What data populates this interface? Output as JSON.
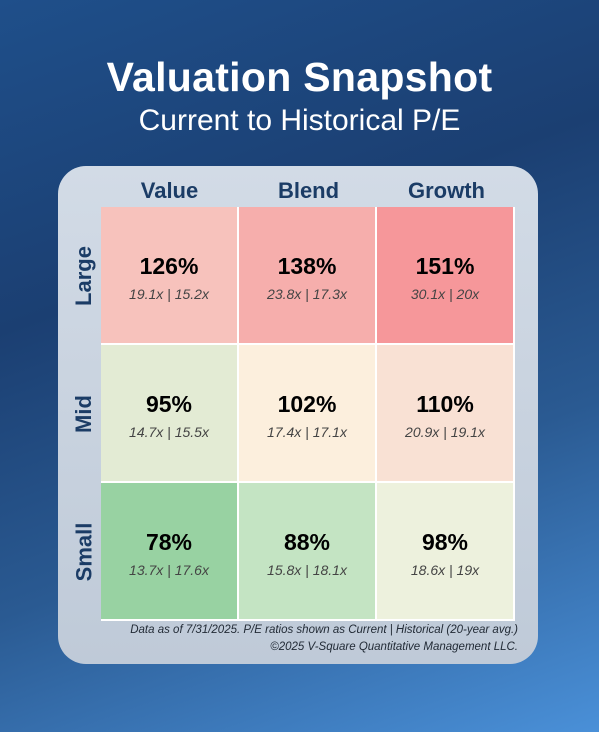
{
  "header": {
    "title": "Valuation Snapshot",
    "subtitle": "Current to Historical P/E"
  },
  "chart_data": {
    "type": "heatmap",
    "title": "Valuation Snapshot",
    "subtitle": "Current to Historical P/E",
    "columns": [
      "Value",
      "Blend",
      "Growth"
    ],
    "rows": [
      "Large",
      "Mid",
      "Small"
    ],
    "cells": [
      [
        {
          "ratio": "126%",
          "pe": "19.1x | 15.2x",
          "color": "#f7c2bc"
        },
        {
          "ratio": "138%",
          "pe": "23.8x | 17.3x",
          "color": "#f6aeac"
        },
        {
          "ratio": "151%",
          "pe": "30.1x | 20x",
          "color": "#f6979a"
        }
      ],
      [
        {
          "ratio": "95%",
          "pe": "14.7x | 15.5x",
          "color": "#e3ebd4"
        },
        {
          "ratio": "102%",
          "pe": "17.4x | 17.1x",
          "color": "#fcefdd"
        },
        {
          "ratio": "110%",
          "pe": "20.9x | 19.1x",
          "color": "#f9e1d4"
        }
      ],
      [
        {
          "ratio": "78%",
          "pe": "13.7x | 17.6x",
          "color": "#98d2a2"
        },
        {
          "ratio": "88%",
          "pe": "15.8x | 18.1x",
          "color": "#c4e4c3"
        },
        {
          "ratio": "98%",
          "pe": "18.6x | 19x",
          "color": "#edf1dd"
        }
      ]
    ]
  },
  "footer": {
    "note": "Data as of 7/31/2025. P/E ratios shown as Current | Historical (20-year avg.)",
    "copyright": "©2025 V-Square Quantitative Management LLC."
  }
}
